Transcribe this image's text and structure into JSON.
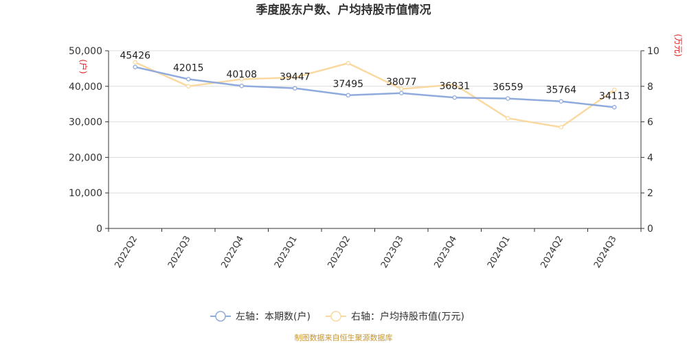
{
  "chart_data": {
    "type": "line",
    "title": "季度股东户数、户均持股市值情况",
    "categories": [
      "2022Q2",
      "2022Q3",
      "2022Q4",
      "2023Q1",
      "2023Q2",
      "2023Q3",
      "2023Q4",
      "2024Q1",
      "2024Q2",
      "2024Q3"
    ],
    "series": [
      {
        "name": "左轴：本期数(户)",
        "axis": "left",
        "color": "#8faadc",
        "values": [
          45426,
          42015,
          40108,
          39447,
          37495,
          38077,
          36831,
          36559,
          35764,
          34113
        ],
        "labels": [
          "45426",
          "42015",
          "40108",
          "39447",
          "37495",
          "38077",
          "36831",
          "36559",
          "35764",
          "34113"
        ]
      },
      {
        "name": "右轴：户均持股市值(万元)",
        "axis": "right",
        "color": "#fad9a1",
        "values": [
          9.35,
          8.0,
          8.4,
          8.5,
          9.3,
          7.85,
          8.1,
          6.2,
          5.7,
          7.8
        ]
      }
    ],
    "left_axis": {
      "unit": "(户)",
      "ylim": [
        0,
        50000
      ],
      "ticks": [
        "0",
        "10,000",
        "20,000",
        "30,000",
        "40,000",
        "50,000"
      ],
      "tick_values": [
        0,
        10000,
        20000,
        30000,
        40000,
        50000
      ]
    },
    "right_axis": {
      "unit": "(万元)",
      "ylim": [
        0,
        10
      ],
      "ticks": [
        "0",
        "2",
        "4",
        "6",
        "8",
        "10"
      ],
      "tick_values": [
        0,
        2,
        4,
        6,
        8,
        10
      ]
    },
    "grid": true,
    "legend_position": "bottom"
  },
  "footer": "制图数据来自恒生聚源数据库"
}
